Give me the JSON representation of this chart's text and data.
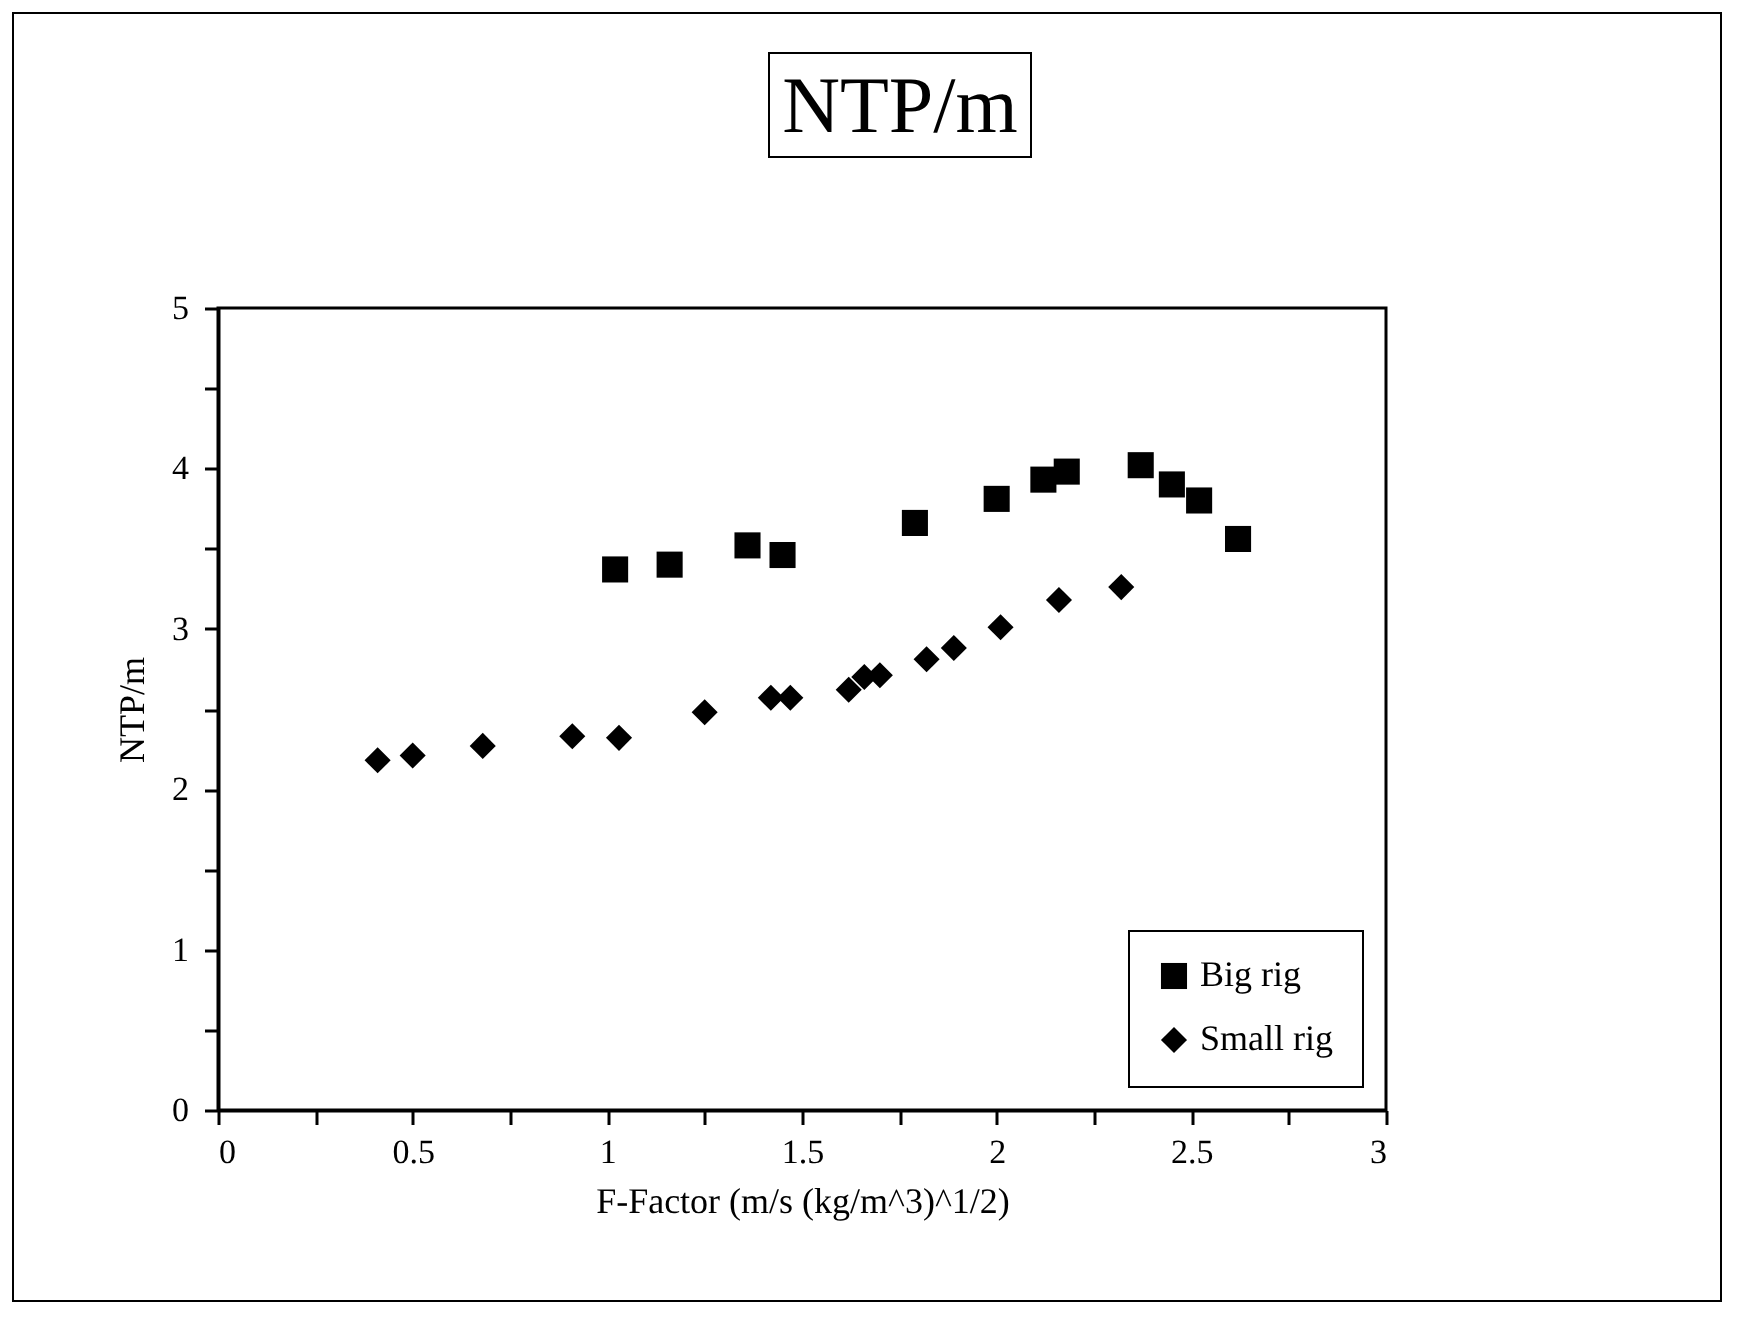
{
  "chart_data": {
    "type": "scatter",
    "title": "NTP/m",
    "xlabel": "F-Factor (m/s (kg/m^3)^1/2)",
    "ylabel": "NTP/m",
    "xlim": [
      0,
      3
    ],
    "xticks": [
      0,
      {
        "value": 0.25,
        "label": null
      },
      0.5,
      {
        "value": 0.75,
        "label": null
      },
      1,
      {
        "value": 1.25,
        "label": null
      },
      1.5,
      {
        "value": 1.75,
        "label": null
      },
      2,
      {
        "value": 2.25,
        "label": null
      },
      2.5,
      {
        "value": 2.75,
        "label": null
      },
      3
    ],
    "ylim": [
      0,
      5
    ],
    "yticks": [
      0,
      {
        "value": 0.5,
        "label": null
      },
      1,
      {
        "value": 1.5,
        "label": null
      },
      2,
      {
        "value": 2.5,
        "label": null
      },
      3,
      {
        "value": 3.5,
        "label": null
      },
      4,
      {
        "value": 4.5,
        "label": null
      },
      5
    ],
    "grid": false,
    "legend": "bottom right",
    "series": [
      {
        "name": "Big rig",
        "color": "#000000",
        "marker": "square",
        "x": [
          1.02,
          1.16,
          1.36,
          1.45,
          1.79,
          2.0,
          2.12,
          2.18,
          2.37,
          2.45,
          2.52,
          2.62
        ],
        "values": [
          3.37,
          3.4,
          3.52,
          3.46,
          3.66,
          3.81,
          3.93,
          3.98,
          4.02,
          3.9,
          3.8,
          3.56
        ]
      },
      {
        "name": "Small rig",
        "color": "#000000",
        "marker": "diamond",
        "x": [
          0.41,
          0.5,
          0.68,
          0.91,
          1.03,
          1.25,
          1.42,
          1.47,
          1.62,
          1.66,
          1.7,
          1.82,
          1.89,
          2.01,
          2.16,
          2.32
        ],
        "values": [
          2.18,
          2.21,
          2.27,
          2.33,
          2.32,
          2.48,
          2.57,
          2.57,
          2.62,
          2.7,
          2.71,
          2.81,
          2.88,
          3.01,
          3.18,
          3.26
        ]
      }
    ]
  }
}
